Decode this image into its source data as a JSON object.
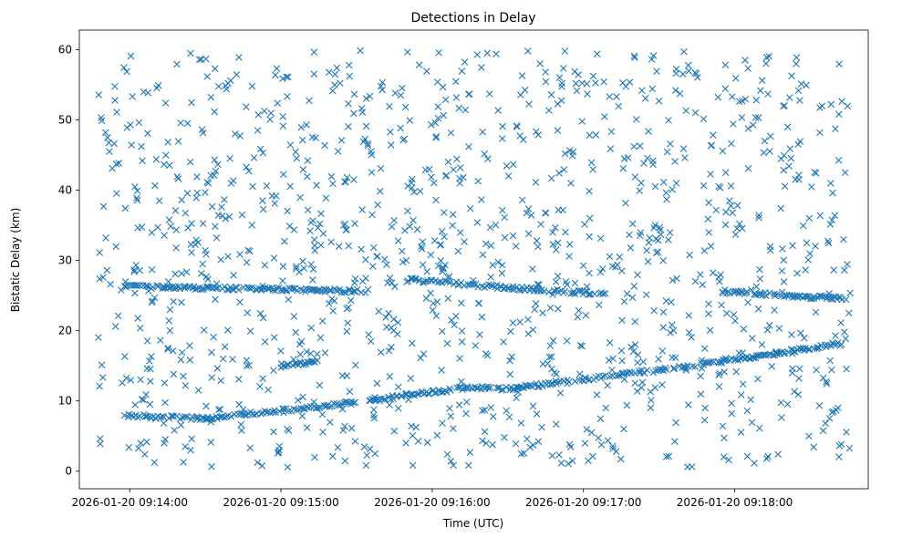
{
  "chart_data": {
    "type": "scatter",
    "title": "Detections in Delay",
    "xlabel": "Time (UTC)",
    "ylabel": "Bistatic Delay (km)",
    "x_ticks": [
      "2026-01-20 09:14:00",
      "2026-01-20 09:15:00",
      "2026-01-20 09:16:00",
      "2026-01-20 09:17:00",
      "2026-01-20 09:18:00"
    ],
    "y_ticks": [
      "0",
      "10",
      "20",
      "30",
      "40",
      "50",
      "60"
    ],
    "xlim": [
      "2026-01-20 09:13:40",
      "2026-01-20 09:18:53"
    ],
    "ylim": [
      -2.5,
      62.8
    ],
    "grid": false,
    "legend": "none",
    "marker": "x",
    "color": "#1f77b4",
    "tracks": [
      {
        "x": [
          "2026-01-20 09:13:58",
          "2026-01-20 09:14:30",
          "2026-01-20 09:15:30"
        ],
        "y": [
          7.9,
          7.5,
          9.8
        ]
      },
      {
        "x": [
          "2026-01-20 09:15:35",
          "2026-01-20 09:16:15",
          "2026-01-20 09:16:30",
          "2026-01-20 09:17:45",
          "2026-01-20 09:18:43"
        ],
        "y": [
          10.0,
          12.0,
          11.7,
          15.1,
          18.2
        ]
      },
      {
        "x": [
          "2026-01-20 09:15:00",
          "2026-01-20 09:15:15"
        ],
        "y": [
          14.8,
          15.8
        ]
      },
      {
        "x": [
          "2026-01-20 09:13:58",
          "2026-01-20 09:15:00",
          "2026-01-20 09:15:35"
        ],
        "y": [
          26.3,
          25.9,
          25.6
        ]
      },
      {
        "x": [
          "2026-01-20 09:15:50",
          "2026-01-20 09:16:30",
          "2026-01-20 09:17:10"
        ],
        "y": [
          27.3,
          26.1,
          25.2
        ]
      },
      {
        "x": [
          "2026-01-20 09:17:55",
          "2026-01-20 09:18:20",
          "2026-01-20 09:18:45"
        ],
        "y": [
          25.6,
          25.0,
          24.5
        ]
      }
    ],
    "scatter_points": [
      {
        "x": "2026-01-20 09:13:48",
        "y": 12.1
      },
      {
        "x": "2026-01-20 09:14:05",
        "y": 44.2
      },
      {
        "x": "2026-01-20 09:14:22",
        "y": 3.5
      },
      {
        "x": "2026-01-20 09:14:40",
        "y": 55.6
      },
      {
        "x": "2026-01-20 09:14:58",
        "y": 39.2
      },
      {
        "x": "2026-01-20 09:15:12",
        "y": 20.4
      },
      {
        "x": "2026-01-20 09:15:27",
        "y": 57.8
      },
      {
        "x": "2026-01-20 09:15:44",
        "y": 34.8
      },
      {
        "x": "2026-01-20 09:16:02",
        "y": 5.1
      },
      {
        "x": "2026-01-20 09:16:20",
        "y": 48.3
      },
      {
        "x": "2026-01-20 09:16:38",
        "y": 21.6
      },
      {
        "x": "2026-01-20 09:16:55",
        "y": 41.0
      },
      {
        "x": "2026-01-20 09:17:13",
        "y": 2.8
      },
      {
        "x": "2026-01-20 09:17:30",
        "y": 52.7
      },
      {
        "x": "2026-01-20 09:17:48",
        "y": 31.4
      },
      {
        "x": "2026-01-20 09:18:05",
        "y": 8.6
      },
      {
        "x": "2026-01-20 09:18:22",
        "y": 45.9
      },
      {
        "x": "2026-01-20 09:18:40",
        "y": 19.3
      }
    ]
  }
}
